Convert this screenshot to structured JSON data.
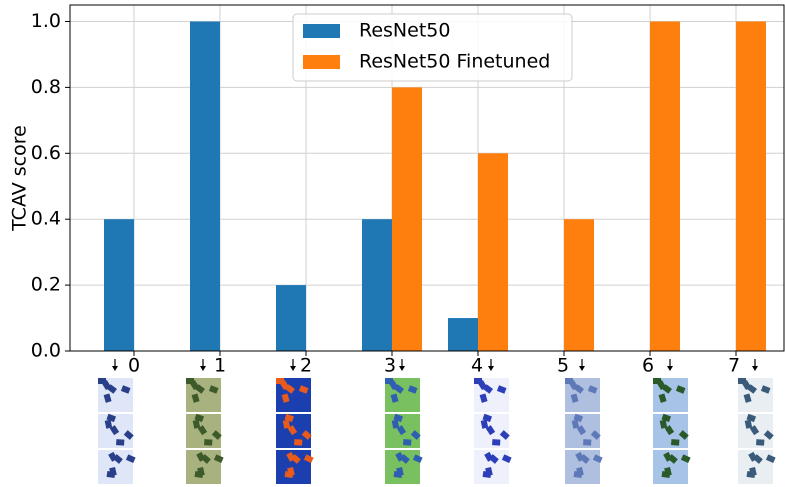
{
  "chart_data": {
    "type": "bar",
    "ylabel": "TCAV score",
    "categories": [
      "0",
      "1",
      "2",
      "3",
      "4",
      "5",
      "6",
      "7"
    ],
    "series": [
      {
        "name": "ResNet50",
        "color": "#1f77b4",
        "values": [
          0.4,
          1.0,
          0.2,
          0.4,
          0.1,
          0,
          0,
          0
        ]
      },
      {
        "name": "ResNet50 Finetuned",
        "color": "#ff7f0e",
        "values": [
          0,
          0,
          0,
          0.8,
          0.6,
          0.4,
          1.0,
          1.0
        ]
      }
    ],
    "ylim": [
      0,
      1.05
    ],
    "yticks": [
      {
        "value": 0,
        "label": "0.0"
      },
      0.2,
      0.4,
      0.6,
      0.8,
      {
        "value": 1,
        "label": "1.0"
      }
    ],
    "grid": true,
    "legend": "upper center"
  }
}
